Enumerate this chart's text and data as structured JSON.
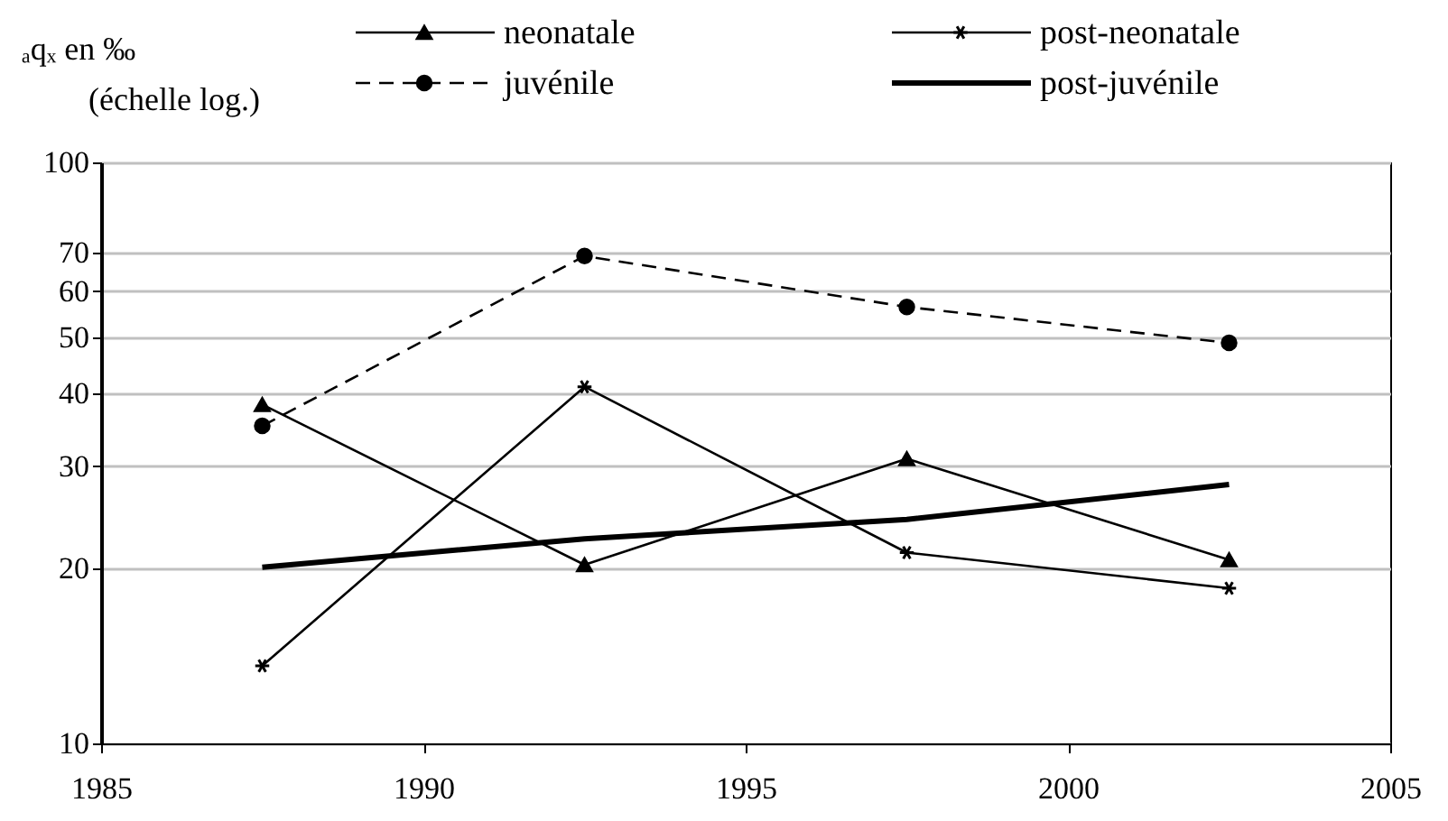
{
  "chart_data": {
    "type": "line",
    "ylabel": "ₐqₓ en ‰",
    "annotations": [
      "(échelle log.)"
    ],
    "x": [
      1987.5,
      1992.5,
      1997.5,
      2002.5
    ],
    "series": [
      {
        "name": "neonatale",
        "color": "#000000",
        "values": [
          38.3,
          20.3,
          30.9,
          20.7
        ],
        "marker": "triangle",
        "line_style": "solid"
      },
      {
        "name": "post-neonatale",
        "color": "#000000",
        "values": [
          13.6,
          41.1,
          21.3,
          18.5
        ],
        "marker": "cross",
        "line_style": "solid"
      },
      {
        "name": "juvénile",
        "color": "#000000",
        "values": [
          35.2,
          69.0,
          56.4,
          48.9
        ],
        "marker": "circle",
        "line_style": "dashed"
      },
      {
        "name": "post-juvénile",
        "color": "#000000",
        "values": [
          20.1,
          22.5,
          24.3,
          27.9
        ],
        "marker": "none",
        "line_style": "solid"
      }
    ],
    "log": "y",
    "xlim": [
      1985,
      2005
    ],
    "xticks": [
      1985,
      1990,
      1995,
      2000,
      2005
    ],
    "ylim": [
      10,
      100
    ],
    "yticks": [
      10,
      20,
      30,
      40,
      50,
      60,
      70,
      100
    ],
    "grid": "y",
    "legend": "top"
  }
}
